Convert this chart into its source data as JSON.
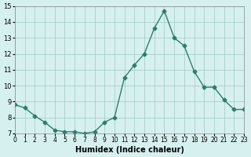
{
  "x": [
    0,
    1,
    2,
    3,
    4,
    5,
    6,
    7,
    8,
    9,
    10,
    11,
    12,
    13,
    14,
    15,
    16,
    17,
    18,
    19,
    20,
    21,
    22,
    23
  ],
  "y": [
    8.8,
    8.6,
    8.1,
    7.7,
    7.2,
    7.1,
    7.1,
    7.0,
    7.1,
    7.7,
    8.0,
    10.5,
    11.3,
    12.0,
    13.6,
    14.7,
    13.0,
    12.5,
    10.9,
    9.9,
    9.9,
    9.1,
    8.5,
    8.5
  ],
  "line_color": "#2d7d6e",
  "marker": "D",
  "marker_size": 2.5,
  "bg_color": "#d6f0ef",
  "grid_color": "#a0c8c8",
  "xlabel": "Humidex (Indice chaleur)",
  "ylim": [
    7,
    15
  ],
  "xlim": [
    0,
    23
  ],
  "yticks": [
    7,
    8,
    9,
    10,
    11,
    12,
    13,
    14,
    15
  ],
  "xticks": [
    0,
    1,
    2,
    3,
    4,
    5,
    6,
    7,
    8,
    9,
    10,
    11,
    12,
    13,
    14,
    15,
    16,
    17,
    18,
    19,
    20,
    21,
    22,
    23
  ]
}
